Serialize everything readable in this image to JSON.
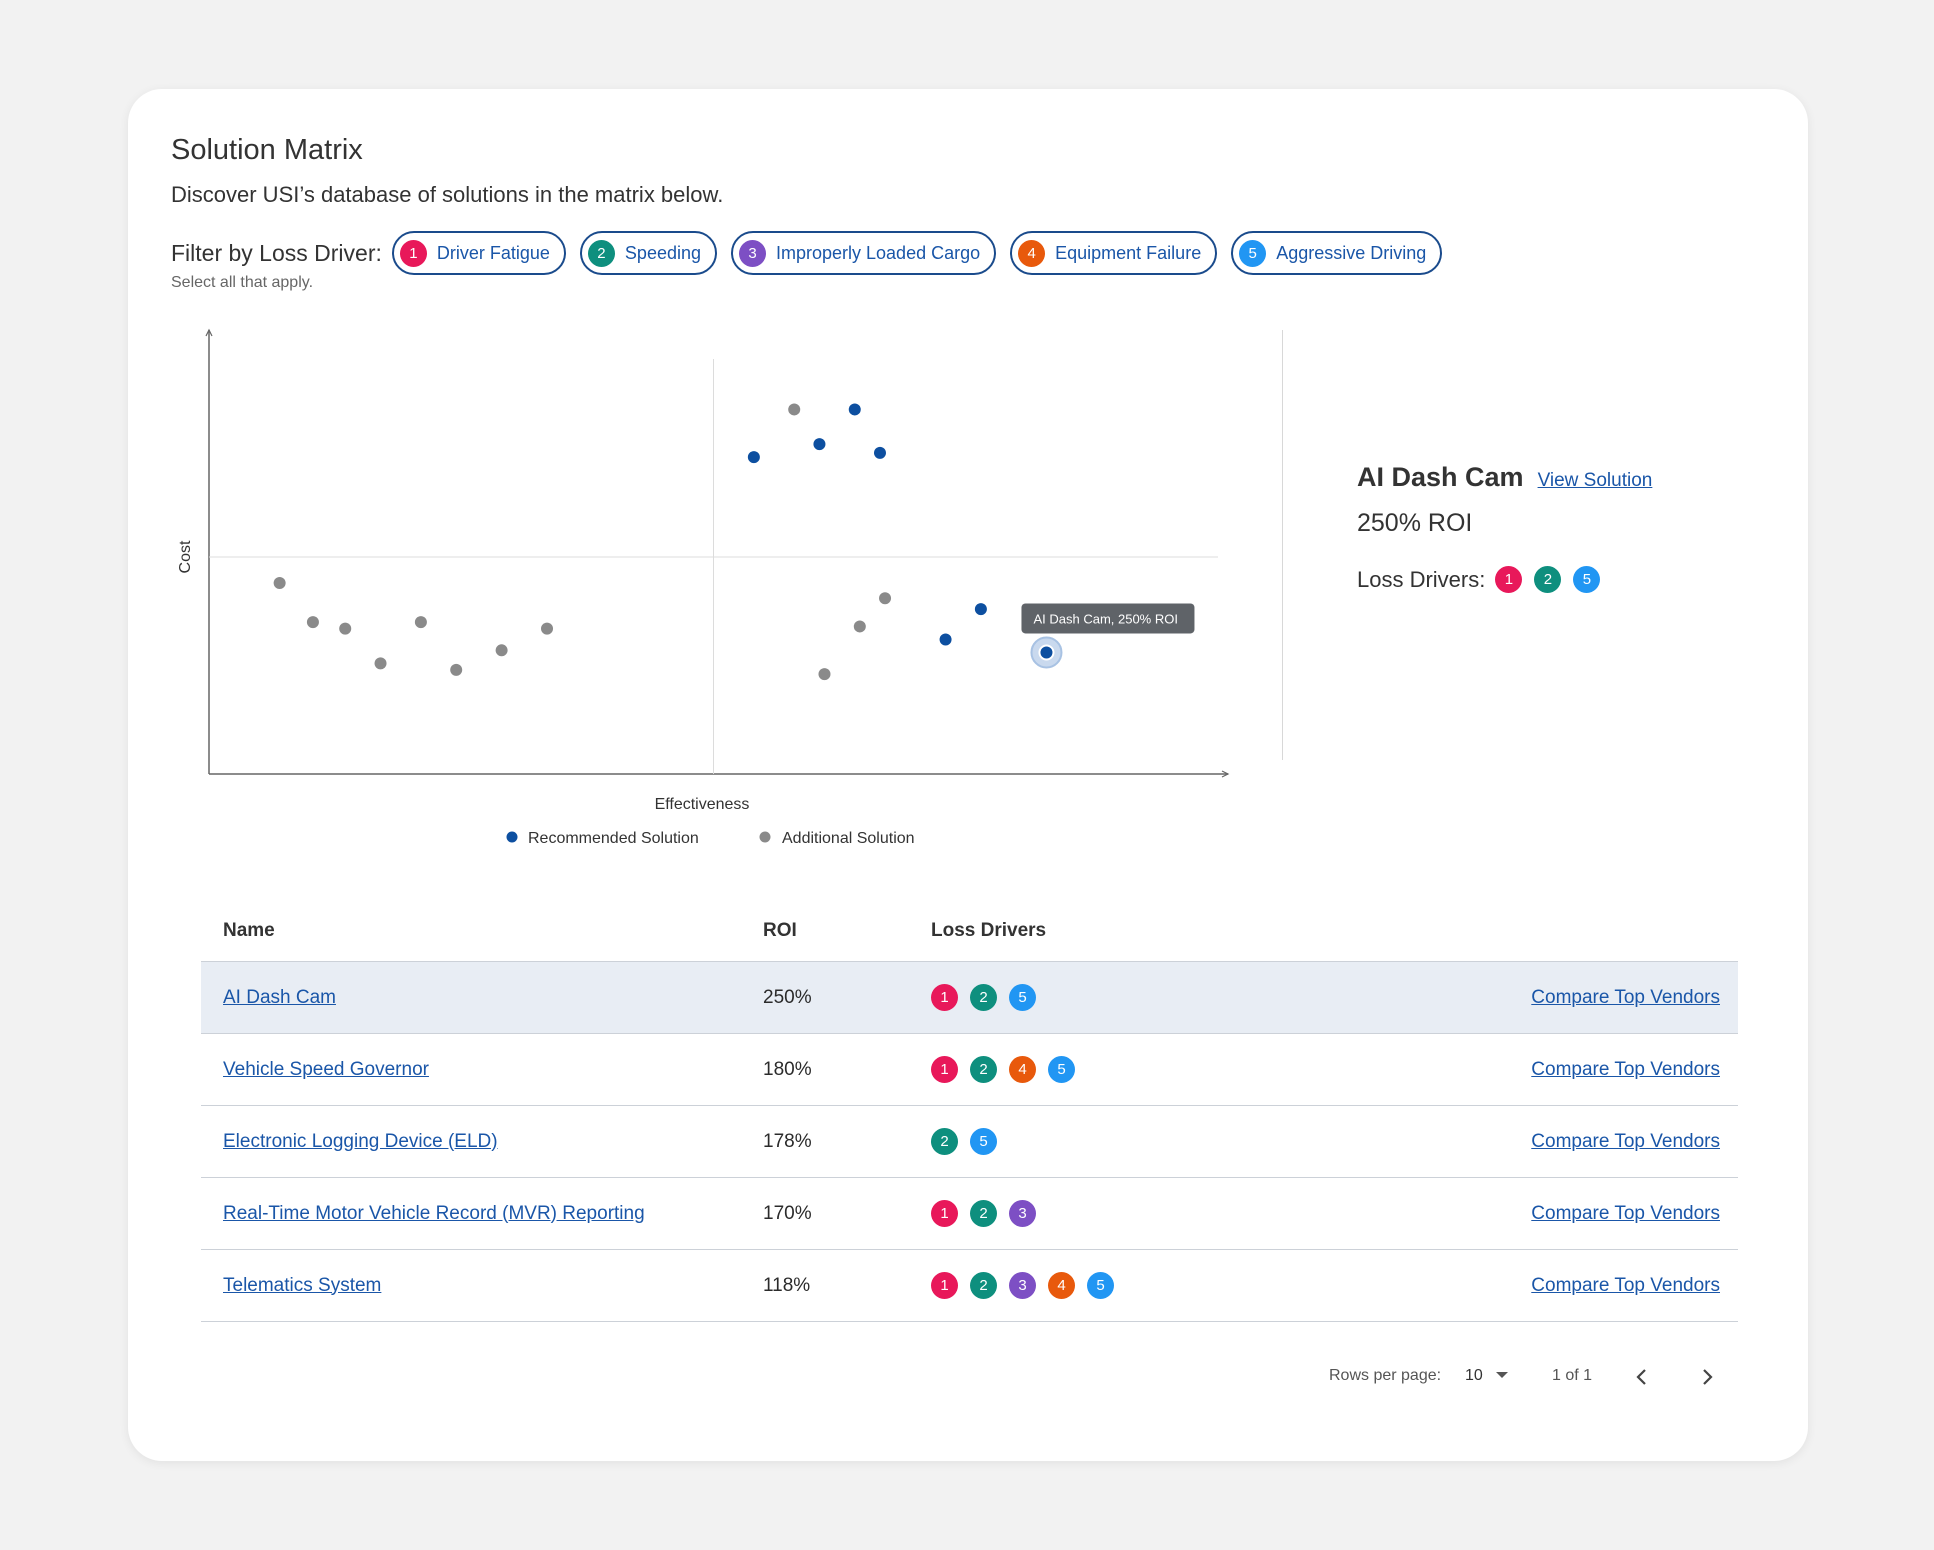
{
  "header": {
    "title": "Solution Matrix",
    "subtitle": "Discover USI’s database of solutions in the matrix below."
  },
  "filter": {
    "label": "Filter by Loss Driver:",
    "hint": "Select all that apply.",
    "chips": [
      {
        "num": "1",
        "label": "Driver Fatigue",
        "color": "#e8185a"
      },
      {
        "num": "2",
        "label": "Speeding",
        "color": "#0e8f7e"
      },
      {
        "num": "3",
        "label": "Improperly Loaded Cargo",
        "color": "#7d4fc4"
      },
      {
        "num": "4",
        "label": "Equipment Failure",
        "color": "#e8590c"
      },
      {
        "num": "5",
        "label": "Aggressive Driving",
        "color": "#2196f3"
      }
    ]
  },
  "chart_data": {
    "type": "scatter",
    "xlabel": "Effectiveness",
    "ylabel": "Cost",
    "xlim": [
      0,
      100
    ],
    "ylim": [
      0,
      100
    ],
    "grid": "quadrant dividers",
    "legend_position": "bottom-center",
    "tooltip": "AI Dash Cam, 250% ROI",
    "series": [
      {
        "name": "Recommended Solution",
        "color": "#0d4fa0",
        "points": [
          [
            54,
            73
          ],
          [
            60.5,
            76
          ],
          [
            64,
            84
          ],
          [
            66.5,
            74
          ],
          [
            73,
            31
          ],
          [
            76.5,
            38
          ],
          [
            83,
            28
          ]
        ]
      },
      {
        "name": "Additional Solution",
        "color": "#8a8a8a",
        "points": [
          [
            7,
            44
          ],
          [
            10.3,
            35
          ],
          [
            13.5,
            33.5
          ],
          [
            17,
            25.5
          ],
          [
            21,
            35
          ],
          [
            24.5,
            24
          ],
          [
            29,
            28.5
          ],
          [
            33.5,
            33.5
          ],
          [
            58,
            84
          ],
          [
            61,
            23
          ],
          [
            64.5,
            34
          ],
          [
            67,
            40.5
          ]
        ]
      }
    ],
    "highlighted_point": [
      83,
      28
    ]
  },
  "detail": {
    "name": "AI Dash Cam",
    "link": "View Solution",
    "roi": "250% ROI",
    "drivers_label": "Loss Drivers:",
    "drivers": [
      {
        "num": "1",
        "color": "#e8185a"
      },
      {
        "num": "2",
        "color": "#0e8f7e"
      },
      {
        "num": "5",
        "color": "#2196f3"
      }
    ]
  },
  "table": {
    "headers": {
      "name": "Name",
      "roi": "ROI",
      "drivers": "Loss Drivers"
    },
    "rows": [
      {
        "name": "AI Dash Cam",
        "roi": "250%",
        "drivers": [
          "1",
          "2",
          "5"
        ],
        "action": "Compare Top Vendors"
      },
      {
        "name": "Vehicle Speed Governor",
        "roi": "180%",
        "drivers": [
          "1",
          "2",
          "4",
          "5"
        ],
        "action": "Compare Top Vendors"
      },
      {
        "name": "Electronic Logging Device (ELD)",
        "roi": "178%",
        "drivers": [
          "2",
          "5"
        ],
        "action": "Compare Top Vendors"
      },
      {
        "name": "Real-Time Motor Vehicle Record (MVR) Reporting",
        "roi": "170%",
        "drivers": [
          "1",
          "2",
          "3"
        ],
        "action": "Compare Top Vendors"
      },
      {
        "name": "Telematics System",
        "roi": "118%",
        "drivers": [
          "1",
          "2",
          "3",
          "4",
          "5"
        ],
        "action": "Compare Top Vendors"
      }
    ]
  },
  "pager": {
    "rows_label": "Rows per page:",
    "rows_value": "10",
    "range": "1 of 1"
  },
  "colors": {
    "driver_1": "#e8185a",
    "driver_2": "#0e8f7e",
    "driver_3": "#7d4fc4",
    "driver_4": "#e8590c",
    "driver_5": "#2196f3",
    "accent": "#1a56a8"
  }
}
